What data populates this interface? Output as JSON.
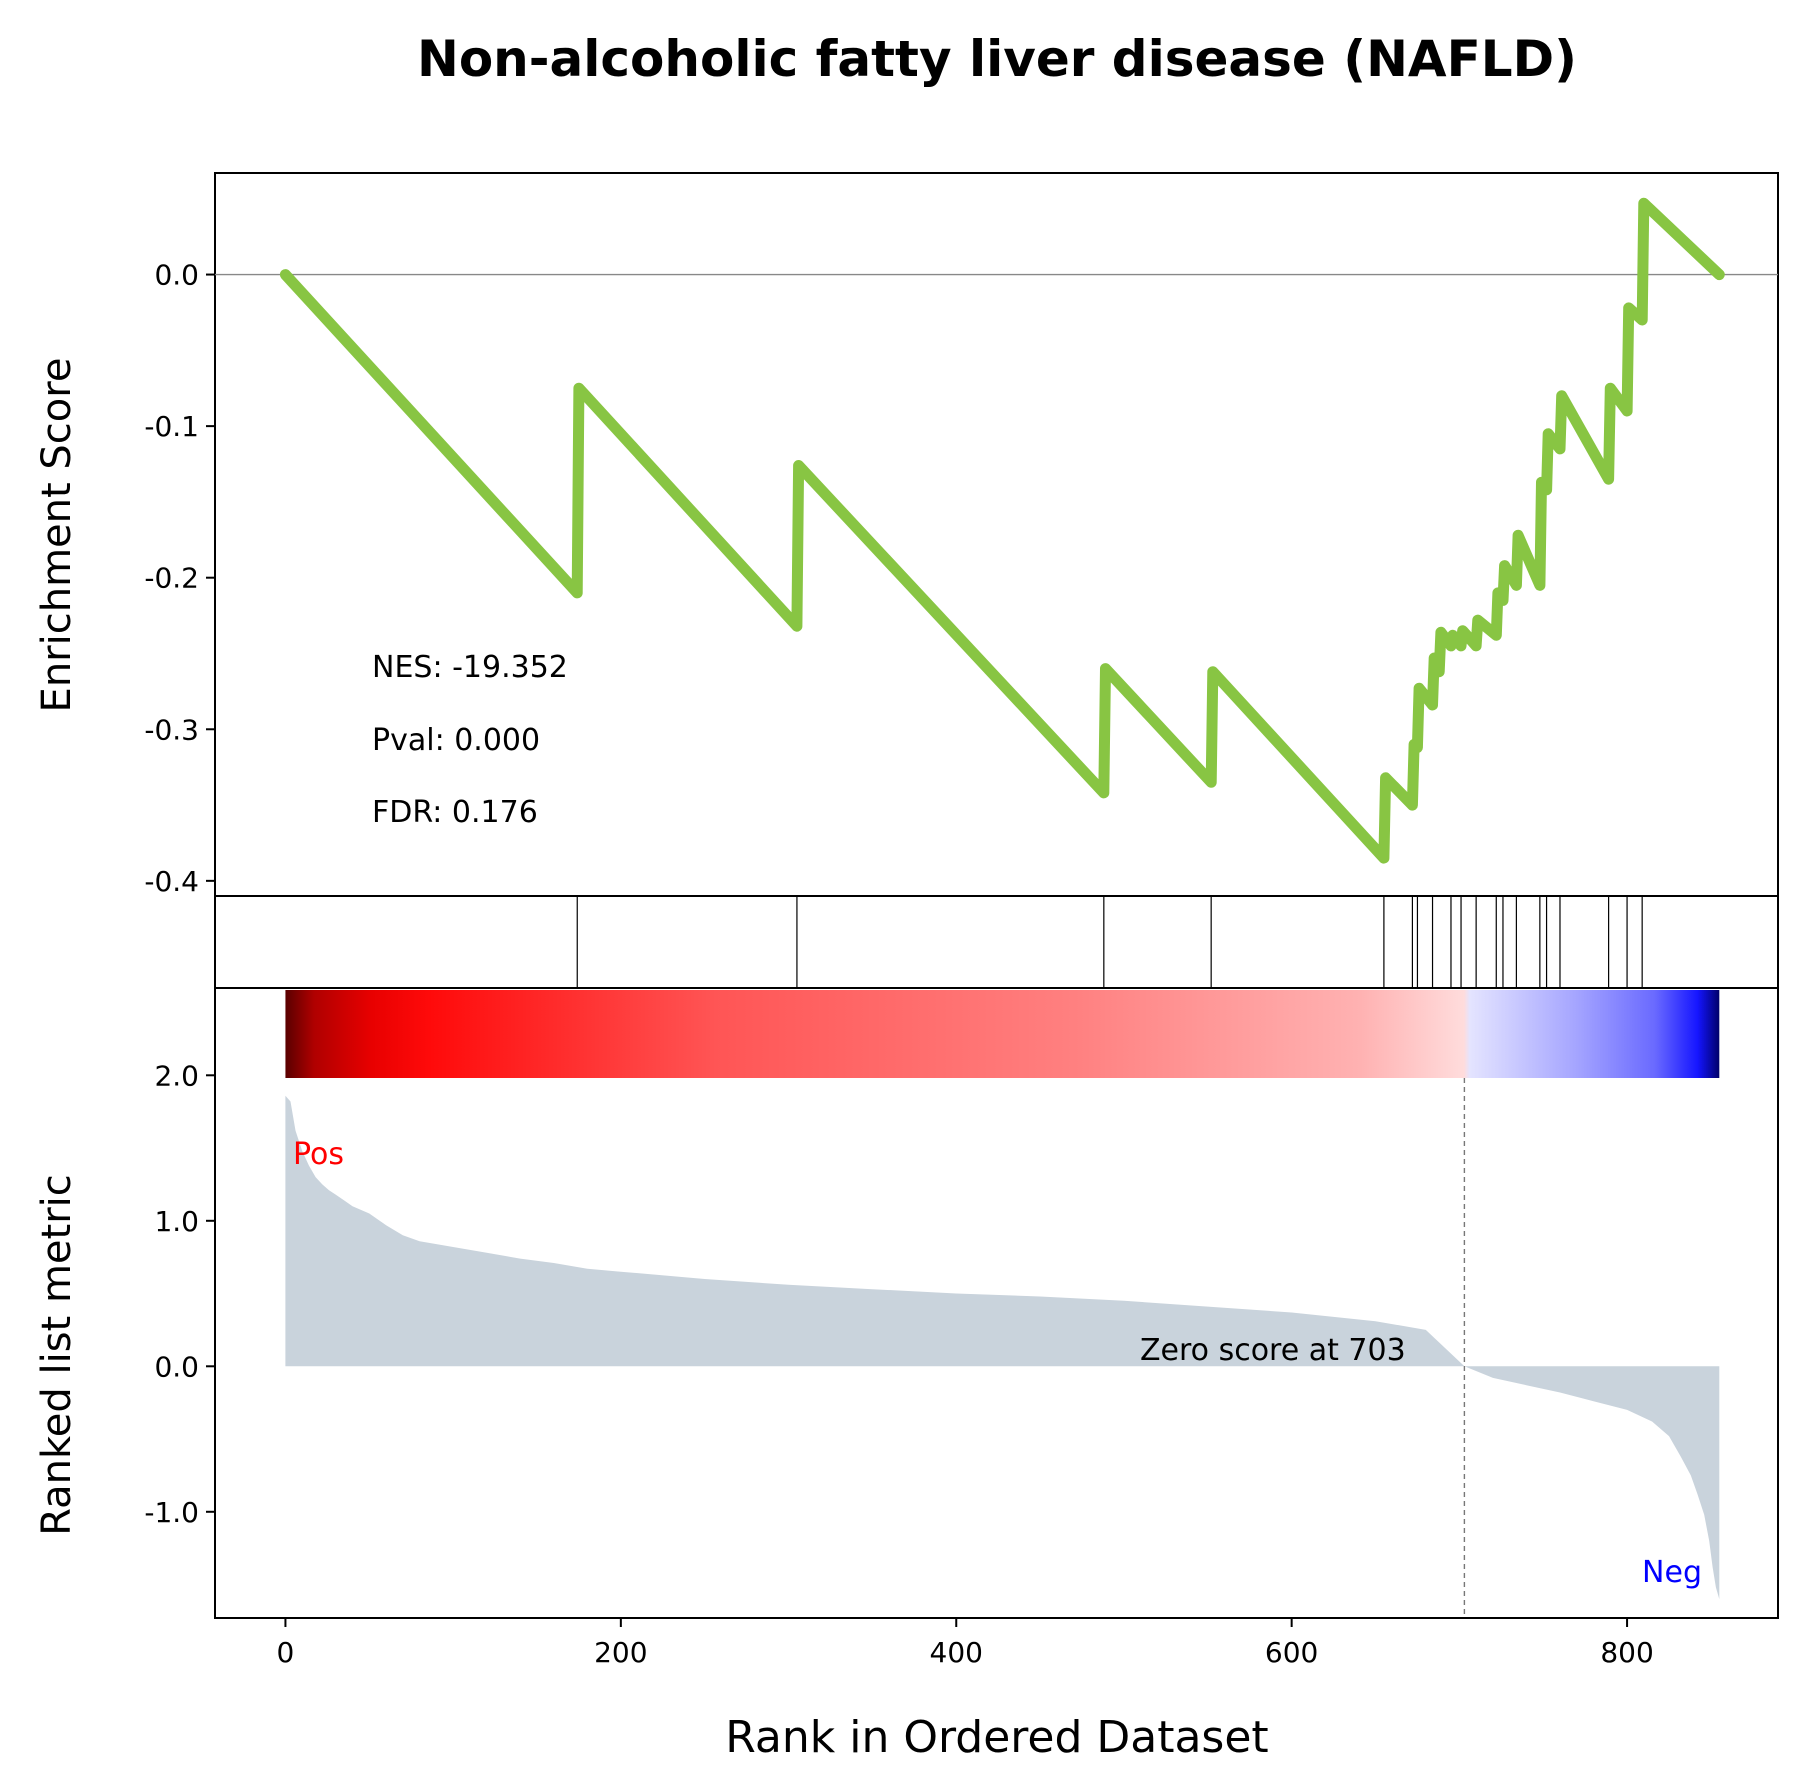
{
  "chart_data": {
    "type": "line",
    "title": "Non-alcoholic fatty liver disease (NAFLD)",
    "xlabel": "Rank in Ordered Dataset",
    "xlim": [
      -42,
      890
    ],
    "x_ticks": [
      {
        "value": 0,
        "label": "0"
      },
      {
        "value": 200,
        "label": "200"
      },
      {
        "value": 400,
        "label": "400"
      },
      {
        "value": 600,
        "label": "600"
      },
      {
        "value": 800,
        "label": "800"
      }
    ],
    "enrichment_panel": {
      "ylabel": "Enrichment Score",
      "ylim": [
        -0.41,
        0.067
      ],
      "y_ticks": [
        {
          "value": 0.0,
          "label": "0.0"
        },
        {
          "value": -0.1,
          "label": "-0.1"
        },
        {
          "value": -0.2,
          "label": "-0.2"
        },
        {
          "value": -0.3,
          "label": "-0.3"
        },
        {
          "value": -0.4,
          "label": "-0.4"
        }
      ],
      "line_color": "#88c543",
      "stats": {
        "nes": "NES: -19.352",
        "pval": "Pval: 0.000",
        "fdr": "FDR: 0.176"
      },
      "series": {
        "x": [
          0,
          174,
          175,
          305,
          306,
          488,
          489,
          552,
          553,
          655,
          656,
          672,
          673,
          675,
          676,
          684,
          685,
          688,
          689,
          695,
          696,
          701,
          702,
          710,
          711,
          722,
          723,
          726,
          727,
          734,
          735,
          748,
          749,
          752,
          753,
          760,
          761,
          789,
          790,
          800,
          801,
          809,
          810,
          855
        ],
        "y": [
          0,
          -0.21,
          -0.075,
          -0.232,
          -0.126,
          -0.342,
          -0.26,
          -0.335,
          -0.262,
          -0.385,
          -0.332,
          -0.35,
          -0.31,
          -0.312,
          -0.273,
          -0.284,
          -0.253,
          -0.262,
          -0.236,
          -0.245,
          -0.238,
          -0.245,
          -0.235,
          -0.245,
          -0.228,
          -0.238,
          -0.21,
          -0.215,
          -0.192,
          -0.205,
          -0.172,
          -0.205,
          -0.137,
          -0.142,
          -0.105,
          -0.115,
          -0.08,
          -0.135,
          -0.075,
          -0.09,
          -0.022,
          -0.03,
          0.047,
          0
        ]
      }
    },
    "hits": [
      174,
      305,
      488,
      552,
      655,
      672,
      675,
      684,
      695,
      701,
      710,
      722,
      726,
      734,
      748,
      752,
      760,
      789,
      800,
      809
    ],
    "ranked_panel": {
      "ylabel": "Ranked list metric",
      "ylim": [
        -1.73,
        2.6
      ],
      "y_ticks": [
        {
          "value": 2.0,
          "label": "2.0"
        },
        {
          "value": 1.0,
          "label": "1.0"
        },
        {
          "value": 0.0,
          "label": "0.0"
        },
        {
          "value": -1.0,
          "label": "-1.0"
        }
      ],
      "fill_color": "#c9d3dc",
      "pos_label": "Pos",
      "neg_label": "Neg",
      "pos_color": "#ff0000",
      "neg_color": "#0000ff",
      "zero_cross": 703,
      "zero_label": "Zero score at 703",
      "series": {
        "x": [
          0,
          3,
          6,
          10,
          14,
          18,
          22,
          26,
          30,
          35,
          40,
          50,
          60,
          70,
          80,
          90,
          100,
          120,
          140,
          160,
          180,
          200,
          250,
          300,
          350,
          400,
          450,
          500,
          550,
          600,
          650,
          680,
          703,
          720,
          740,
          760,
          780,
          800,
          815,
          825,
          832,
          838,
          842,
          846,
          849,
          851,
          853,
          855
        ],
        "y": [
          1.86,
          1.82,
          1.62,
          1.48,
          1.38,
          1.3,
          1.25,
          1.21,
          1.18,
          1.14,
          1.1,
          1.05,
          0.97,
          0.9,
          0.86,
          0.84,
          0.82,
          0.78,
          0.74,
          0.71,
          0.67,
          0.65,
          0.6,
          0.56,
          0.53,
          0.5,
          0.48,
          0.45,
          0.41,
          0.37,
          0.31,
          0.25,
          0.0,
          -0.08,
          -0.13,
          -0.18,
          -0.24,
          -0.3,
          -0.38,
          -0.48,
          -0.62,
          -0.75,
          -0.88,
          -1.02,
          -1.2,
          -1.38,
          -1.52,
          -1.6
        ]
      }
    },
    "colorbar": {
      "range": [
        0,
        855
      ],
      "gradient_stops": [
        {
          "offset": 0,
          "color": "#5a0000"
        },
        {
          "offset": 0.02,
          "color": "#b00000"
        },
        {
          "offset": 0.06,
          "color": "#e80000"
        },
        {
          "offset": 0.1,
          "color": "#ff0a0a"
        },
        {
          "offset": 0.3,
          "color": "#ff5555"
        },
        {
          "offset": 0.55,
          "color": "#ff8080"
        },
        {
          "offset": 0.75,
          "color": "#ffb2b2"
        },
        {
          "offset": 0.822,
          "color": "#ffdcdc"
        },
        {
          "offset": 0.826,
          "color": "#e4e4ff"
        },
        {
          "offset": 0.9,
          "color": "#a5a5ff"
        },
        {
          "offset": 0.955,
          "color": "#6a6aff"
        },
        {
          "offset": 0.985,
          "color": "#1515ff"
        },
        {
          "offset": 1,
          "color": "#00006a"
        }
      ]
    }
  }
}
